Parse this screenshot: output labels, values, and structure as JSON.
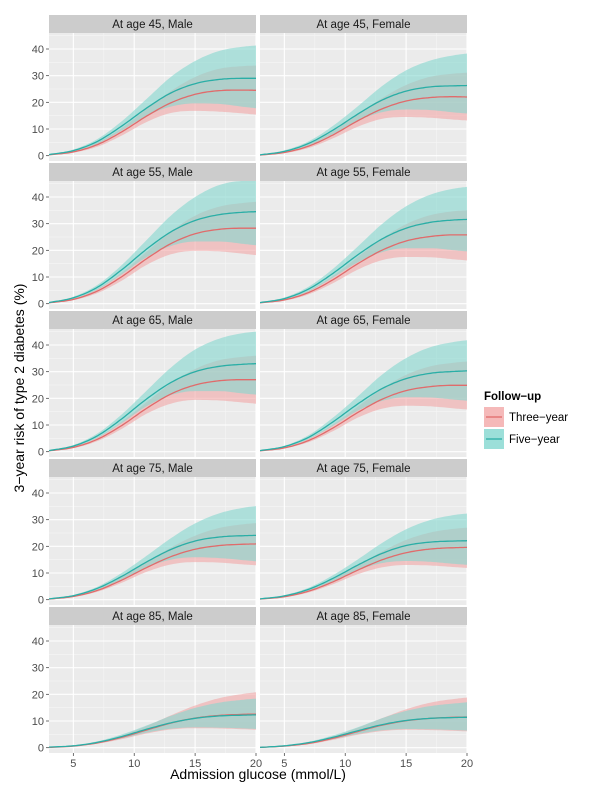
{
  "chart_data": {
    "type": "line",
    "facet_layout": "5 rows x 2 columns",
    "xlabel": "Admission glucose (mmol/L)",
    "ylabel": "3−year risk of type 2 diabetes (%)",
    "xlim": [
      3,
      20
    ],
    "ylim": [
      -2,
      46
    ],
    "x_ticks": [
      "5",
      "10",
      "15",
      "20"
    ],
    "x_tick_values": [
      5,
      10,
      15,
      20
    ],
    "y_ticks": [
      "0",
      "10",
      "20",
      "30",
      "40"
    ],
    "y_tick_values": [
      0,
      10,
      20,
      30,
      40
    ],
    "grid": true,
    "legend": {
      "title": "Follow−up",
      "placement": "right",
      "entries": [
        {
          "label": "Three−year",
          "line_color": "#e06b6b",
          "band_color": "#f2a7a7"
        },
        {
          "label": "Five−year",
          "line_color": "#2aaea6",
          "band_color": "#83d7cf"
        }
      ]
    },
    "x": [
      3,
      5,
      7,
      9,
      11,
      13,
      15,
      17,
      19,
      20
    ],
    "panels": [
      {
        "label": "At age 45, Male",
        "series": [
          {
            "name": "Three−year",
            "values": [
              0.3,
              1.4,
              4.2,
              9,
              14.8,
              19.8,
              23,
              24.4,
              24.6,
              24.5
            ],
            "lower": [
              0.2,
              1.1,
              3.4,
              7.6,
              12.6,
              16,
              16.8,
              16.5,
              15.8,
              15.4
            ],
            "upper": [
              0.4,
              1.7,
              5,
              10.4,
              17.5,
              24.2,
              29.5,
              32.6,
              33.6,
              33.8
            ]
          },
          {
            "name": "Five−year",
            "values": [
              0.4,
              1.9,
              5.4,
              11.2,
              17.8,
              23.5,
              27,
              28.6,
              29,
              29
            ],
            "lower": [
              0.3,
              1.5,
              4.5,
              9.5,
              14.9,
              18.4,
              19.6,
              19.4,
              18.3,
              17.8
            ],
            "upper": [
              0.5,
              2.3,
              6.3,
              13,
              21.2,
              29.5,
              35.5,
              39.3,
              40.9,
              41.3
            ]
          }
        ]
      },
      {
        "label": "At age 45, Female",
        "series": [
          {
            "name": "Three−year",
            "values": [
              0.2,
              1.2,
              3.6,
              7.8,
              13,
              17.5,
              20.5,
              21.8,
              22.1,
              22
            ],
            "lower": [
              0.1,
              0.9,
              2.9,
              6.5,
              10.8,
              13.8,
              14.5,
              14.2,
              13.5,
              13.2
            ],
            "upper": [
              0.3,
              1.5,
              4.3,
              9.2,
              15.4,
              21.5,
              26.5,
              29.6,
              30.8,
              31.1
            ]
          },
          {
            "name": "Five−year",
            "values": [
              0.3,
              1.6,
              4.6,
              9.6,
              15.5,
              20.8,
              24.2,
              25.8,
              26.2,
              26.3
            ],
            "lower": [
              0.2,
              1.3,
              3.8,
              8.1,
              13,
              16.3,
              17.3,
              17.1,
              16.2,
              15.8
            ],
            "upper": [
              0.4,
              2,
              5.4,
              11.2,
              18.4,
              26,
              32,
              35.7,
              37.7,
              38.3
            ]
          }
        ]
      },
      {
        "label": "At age 55, Male",
        "series": [
          {
            "name": "Three−year",
            "values": [
              0.3,
              1.6,
              4.8,
              10.2,
              16.8,
              22.5,
              26.2,
              27.9,
              28.3,
              28.3
            ],
            "lower": [
              0.2,
              1.3,
              4,
              8.7,
              14.5,
              18.5,
              19.8,
              19.6,
              18.7,
              18.2
            ],
            "upper": [
              0.4,
              1.9,
              5.6,
              11.7,
              19.4,
              27,
              33,
              36.4,
              37.8,
              38.2
            ]
          },
          {
            "name": "Five−year",
            "values": [
              0.4,
              2.2,
              6.2,
              12.8,
              20.4,
              26.9,
              31.2,
              33.4,
              34.3,
              34.5
            ],
            "lower": [
              0.3,
              1.8,
              5.3,
              11.1,
              17.4,
              21.6,
              23.3,
              23.3,
              22.4,
              21.9
            ],
            "upper": [
              0.5,
              2.6,
              7.1,
              14.6,
              23.8,
              33,
              40,
              44.5,
              46,
              46
            ]
          }
        ]
      },
      {
        "label": "At age 55, Female",
        "series": [
          {
            "name": "Three−year",
            "values": [
              0.3,
              1.4,
              4.2,
              9,
              14.9,
              20,
              23.5,
              25.2,
              25.8,
              25.8
            ],
            "lower": [
              0.2,
              1.1,
              3.5,
              7.7,
              12.7,
              16.3,
              17.5,
              17.4,
              16.6,
              16.2
            ],
            "upper": [
              0.4,
              1.7,
              4.9,
              10.4,
              17.4,
              24.3,
              29.8,
              33.2,
              34.7,
              35
            ]
          },
          {
            "name": "Five−year",
            "values": [
              0.4,
              1.9,
              5.5,
              11.4,
              18.2,
              24.2,
              28.3,
              30.5,
              31.4,
              31.6
            ],
            "lower": [
              0.3,
              1.6,
              4.6,
              9.8,
              15.4,
              19.3,
              20.8,
              20.8,
              20,
              19.6
            ],
            "upper": [
              0.5,
              2.3,
              6.4,
              13.1,
              21.3,
              29.8,
              36.5,
              40.9,
              43.2,
              43.8
            ]
          }
        ]
      },
      {
        "label": "At age 65, Male",
        "series": [
          {
            "name": "Three−year",
            "values": [
              0.3,
              1.6,
              4.7,
              9.9,
              16.2,
              21.6,
              25,
              26.6,
              27,
              27
            ],
            "lower": [
              0.2,
              1.3,
              4,
              8.6,
              14.2,
              18,
              19.4,
              19.2,
              18.4,
              18
            ],
            "upper": [
              0.4,
              1.9,
              5.4,
              11.3,
              18.5,
              25.6,
              31,
              34.3,
              35.6,
              36
            ]
          },
          {
            "name": "Five−year",
            "values": [
              0.4,
              2.1,
              6,
              12.4,
              19.7,
              25.9,
              30,
              32,
              32.8,
              33
            ],
            "lower": [
              0.3,
              1.8,
              5.2,
              10.8,
              17,
              21.2,
              22.7,
              22.7,
              21.8,
              21.4
            ],
            "upper": [
              0.5,
              2.5,
              6.9,
              14.1,
              22.8,
              31.5,
              38.3,
              42.4,
              44.5,
              45
            ]
          }
        ]
      },
      {
        "label": "At age 65, Female",
        "series": [
          {
            "name": "Three−year",
            "values": [
              0.3,
              1.4,
              4.2,
              8.9,
              14.6,
              19.6,
              22.9,
              24.4,
              24.9,
              24.9
            ],
            "lower": [
              0.2,
              1.2,
              3.6,
              7.7,
              12.7,
              16.1,
              17.2,
              17,
              16.2,
              15.8
            ],
            "upper": [
              0.4,
              1.7,
              4.9,
              10.2,
              16.8,
              23.5,
              28.8,
              32,
              33.4,
              33.8
            ]
          },
          {
            "name": "Five−year",
            "values": [
              0.4,
              1.9,
              5.4,
              11.2,
              17.8,
              23.6,
              27.4,
              29.4,
              30.1,
              30.3
            ],
            "lower": [
              0.3,
              1.6,
              4.7,
              9.7,
              15.3,
              19,
              20.4,
              20.3,
              19.5,
              19.1
            ],
            "upper": [
              0.5,
              2.2,
              6.2,
              12.8,
              20.6,
              28.8,
              35.1,
              39.2,
              41.2,
              41.8
            ]
          }
        ]
      },
      {
        "label": "At age 75, Male",
        "series": [
          {
            "name": "Three−year",
            "values": [
              0.2,
              1.2,
              3.5,
              7.4,
              12,
              16.1,
              18.9,
              20.3,
              20.8,
              20.9
            ],
            "lower": [
              0.1,
              1,
              3,
              6.4,
              10.4,
              13.2,
              14.1,
              13.9,
              13.2,
              12.9
            ],
            "upper": [
              0.3,
              1.4,
              4,
              8.5,
              14,
              19.5,
              24,
              26.9,
              28.3,
              28.7
            ]
          },
          {
            "name": "Five−year",
            "values": [
              0.3,
              1.5,
              4.3,
              8.8,
              14.1,
              18.8,
              22,
              23.5,
              24,
              24.1
            ],
            "lower": [
              0.2,
              1.2,
              3.7,
              7.6,
              12.1,
              15,
              15.9,
              15.6,
              14.8,
              14.4
            ],
            "upper": [
              0.4,
              1.8,
              4.9,
              10.1,
              16.4,
              23,
              28.6,
              32.4,
              34.5,
              35.1
            ]
          }
        ]
      },
      {
        "label": "At age 75, Female",
        "series": [
          {
            "name": "Three−year",
            "values": [
              0.2,
              1.1,
              3.2,
              6.7,
              11,
              14.9,
              17.6,
              19,
              19.5,
              19.6
            ],
            "lower": [
              0.1,
              0.9,
              2.7,
              5.8,
              9.5,
              12.1,
              13,
              12.8,
              12.2,
              11.9
            ],
            "upper": [
              0.3,
              1.3,
              3.7,
              7.7,
              12.8,
              18,
              22.4,
              25.2,
              26.6,
              27
            ]
          },
          {
            "name": "Five−year",
            "values": [
              0.3,
              1.4,
              3.9,
              8,
              12.9,
              17.3,
              20.3,
              21.6,
              22,
              22.1
            ],
            "lower": [
              0.2,
              1.1,
              3.4,
              6.9,
              11,
              13.7,
              14.5,
              14.2,
              13.4,
              13.1
            ],
            "upper": [
              0.4,
              1.7,
              4.5,
              9.2,
              15,
              21.2,
              26.4,
              29.9,
              31.8,
              32.3
            ]
          }
        ]
      },
      {
        "label": "At age 85, Male",
        "series": [
          {
            "name": "Three−year",
            "values": [
              0.1,
              0.6,
              1.8,
              3.9,
              6.6,
              9.2,
              11.1,
              12.1,
              12.5,
              12.6
            ],
            "lower": [
              0.1,
              0.5,
              1.5,
              3.2,
              5.3,
              6.8,
              7.3,
              7.2,
              6.9,
              6.7
            ],
            "upper": [
              0.2,
              0.8,
              2.2,
              4.6,
              8.1,
              12.1,
              15.8,
              18.6,
              20.2,
              20.8
            ]
          },
          {
            "name": "Five−year",
            "values": [
              0.2,
              0.7,
              2,
              4.2,
              6.9,
              9.3,
              11,
              11.9,
              12.2,
              12.3
            ],
            "lower": [
              0.1,
              0.6,
              1.7,
              3.5,
              5.6,
              7.1,
              7.6,
              7.5,
              7.2,
              7
            ],
            "upper": [
              0.3,
              0.9,
              2.4,
              5,
              8.3,
              11.9,
              14.9,
              16.9,
              18,
              18.4
            ]
          }
        ]
      },
      {
        "label": "At age 85, Female",
        "series": [
          {
            "name": "Three−year",
            "values": [
              0.1,
              0.6,
              1.6,
              3.5,
              6,
              8.4,
              10.1,
              11,
              11.4,
              11.5
            ],
            "lower": [
              0.1,
              0.5,
              1.3,
              2.9,
              4.8,
              6.2,
              6.7,
              6.6,
              6.3,
              6.1
            ],
            "upper": [
              0.2,
              0.7,
              2,
              4.2,
              7.4,
              11,
              14.4,
              16.9,
              18.3,
              18.8
            ]
          },
          {
            "name": "Five−year",
            "values": [
              0.1,
              0.7,
              1.9,
              3.9,
              6.3,
              8.6,
              10.2,
              11,
              11.3,
              11.4
            ],
            "lower": [
              0.1,
              0.5,
              1.6,
              3.2,
              5.1,
              6.5,
              7,
              6.9,
              6.6,
              6.4
            ],
            "upper": [
              0.2,
              0.8,
              2.2,
              4.6,
              7.6,
              11,
              13.8,
              15.6,
              16.6,
              17
            ]
          }
        ]
      }
    ]
  }
}
